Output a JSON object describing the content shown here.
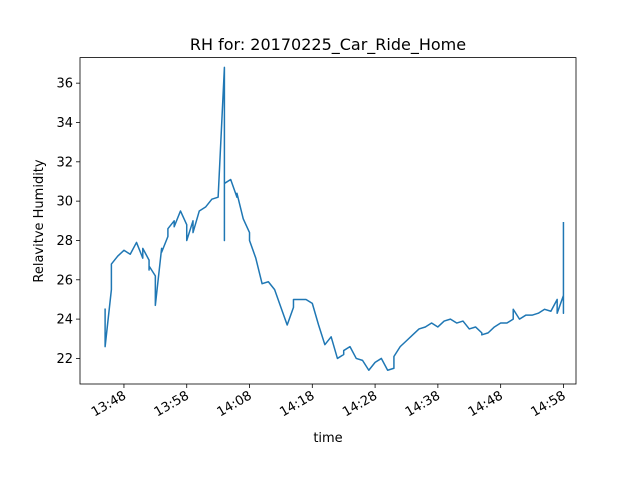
{
  "chart_data": {
    "type": "line",
    "title": "RH for: 20170225_Car_Ride_Home",
    "xlabel": "time",
    "ylabel": "Relavitve Humidity",
    "xlim": [
      "13:41",
      "15:00"
    ],
    "ylim": [
      20.7,
      37.3
    ],
    "grid": false,
    "x_ticks": [
      "13:48",
      "13:58",
      "14:08",
      "14:18",
      "14:28",
      "14:38",
      "14:48",
      "14:58"
    ],
    "y_ticks": [
      22,
      24,
      26,
      28,
      30,
      32,
      34,
      36
    ],
    "series": [
      {
        "color": "#1f77b4",
        "x": [
          "13:45",
          "13:45",
          "13:46",
          "13:46",
          "13:47",
          "13:48",
          "13:49",
          "13:50",
          "13:51",
          "13:51",
          "13:52",
          "13:52",
          "13:52",
          "13:53",
          "13:53",
          "13:54",
          "13:54",
          "13:55",
          "13:55",
          "13:56",
          "13:56",
          "13:57",
          "13:58",
          "13:58",
          "13:59",
          "13:59",
          "14:00",
          "14:01",
          "14:02",
          "14:03",
          "14:04",
          "14:04",
          "14:04",
          "14:04",
          "14:05",
          "14:06",
          "14:06",
          "14:07",
          "14:08",
          "14:08",
          "14:09",
          "14:10",
          "14:11",
          "14:12",
          "14:13",
          "14:14",
          "14:15",
          "14:15",
          "14:16",
          "14:17",
          "14:18",
          "14:19",
          "14:20",
          "14:21",
          "14:22",
          "14:23",
          "14:23",
          "14:24",
          "14:25",
          "14:26",
          "14:27",
          "14:28",
          "14:29",
          "14:30",
          "14:31",
          "14:31",
          "14:32",
          "14:33",
          "14:34",
          "14:35",
          "14:36",
          "14:37",
          "14:38",
          "14:39",
          "14:40",
          "14:41",
          "14:42",
          "14:43",
          "14:44",
          "14:45",
          "14:45",
          "14:46",
          "14:47",
          "14:48",
          "14:49",
          "14:50",
          "14:50",
          "14:51",
          "14:52",
          "14:53",
          "14:54",
          "14:55",
          "14:56",
          "14:57",
          "14:57",
          "14:58",
          "14:58",
          "14:58"
        ],
        "values": [
          24.5,
          22.6,
          25.5,
          26.8,
          27.2,
          27.5,
          27.3,
          27.9,
          27.1,
          27.6,
          27.0,
          26.5,
          26.7,
          26.2,
          24.7,
          27.6,
          27.4,
          28.2,
          28.6,
          29.0,
          28.7,
          29.5,
          28.8,
          28.0,
          29.0,
          28.4,
          29.5,
          29.7,
          30.1,
          30.2,
          36.8,
          28.0,
          30.0,
          30.9,
          31.1,
          30.2,
          30.4,
          29.1,
          28.4,
          28.0,
          27.1,
          25.8,
          25.9,
          25.5,
          24.6,
          23.7,
          24.6,
          25.0,
          25.0,
          25.0,
          24.8,
          23.7,
          22.7,
          23.1,
          22.0,
          22.2,
          22.4,
          22.6,
          22.0,
          21.9,
          21.4,
          21.8,
          22.0,
          21.4,
          21.5,
          22.1,
          22.6,
          22.9,
          23.2,
          23.5,
          23.6,
          23.8,
          23.6,
          23.9,
          24.0,
          23.8,
          23.9,
          23.5,
          23.6,
          23.3,
          23.2,
          23.3,
          23.6,
          23.8,
          23.8,
          24.0,
          24.5,
          24.0,
          24.2,
          24.2,
          24.3,
          24.5,
          24.4,
          25.0,
          24.3,
          25.2,
          24.3,
          28.9
        ]
      }
    ]
  }
}
